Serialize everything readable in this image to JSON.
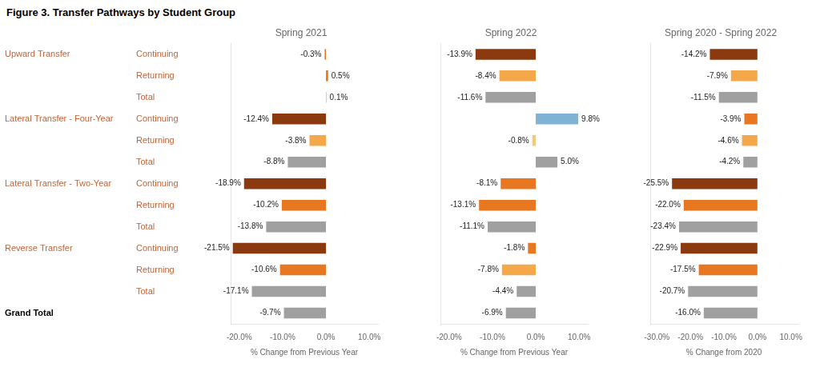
{
  "title": "Figure 3. Transfer Pathways by Student Group",
  "categories": [
    [
      "Upward Transfer",
      "Continuing"
    ],
    [
      null,
      "Returning"
    ],
    [
      null,
      "Total"
    ],
    [
      "Lateral Transfer - Four-Year",
      "Continuing"
    ],
    [
      null,
      "Returning"
    ],
    [
      null,
      "Total"
    ],
    [
      "Lateral Transfer - Two-Year",
      "Continuing"
    ],
    [
      null,
      "Returning"
    ],
    [
      null,
      "Total"
    ],
    [
      "Reverse Transfer",
      "Continuing"
    ],
    [
      null,
      "Returning"
    ],
    [
      null,
      "Total"
    ],
    [
      "Grand Total"
    ]
  ],
  "chart_data": [
    {
      "type": "bar",
      "orientation": "horizontal",
      "title": "Spring 2021",
      "xlabel": "% Change from Previous Year",
      "values": [
        -0.3,
        0.5,
        0.1,
        -12.4,
        -3.8,
        -8.8,
        -18.9,
        -10.2,
        -13.8,
        -21.5,
        -10.6,
        -17.1,
        -9.7
      ],
      "value_labels": [
        "-0.3%",
        "0.5%",
        "0.1%",
        "-12.4%",
        "-3.8%",
        "-8.8%",
        "-18.9%",
        "-10.2%",
        "-13.8%",
        "-21.5%",
        "-10.6%",
        "-17.1%",
        "-9.7%"
      ],
      "colors": [
        "#E87722",
        "#E87722",
        "#A0A0A0",
        "#8B3A0F",
        "#F5A84A",
        "#A0A0A0",
        "#8B3A0F",
        "#E87722",
        "#A0A0A0",
        "#8B3A0F",
        "#E87722",
        "#A0A0A0",
        "#A0A0A0"
      ],
      "xlim": [
        -22.0,
        12.0
      ],
      "xticks": [
        {
          "value": -20,
          "label": "-20.0%"
        },
        {
          "value": -10,
          "label": "-10.0%"
        },
        {
          "value": 0,
          "label": "0.0%"
        },
        {
          "value": 10,
          "label": "10.0%"
        }
      ],
      "data_labels": true,
      "grid": false,
      "tick_labels": "x"
    },
    {
      "type": "bar",
      "orientation": "horizontal",
      "title": "Spring 2022",
      "xlabel": "% Change from Previous Year",
      "values": [
        -13.9,
        -8.4,
        -11.6,
        9.8,
        -0.8,
        5.0,
        -8.1,
        -13.1,
        -11.1,
        -1.8,
        -7.8,
        -4.4,
        -6.9
      ],
      "value_labels": [
        "-13.9%",
        "-8.4%",
        "-11.6%",
        "9.8%",
        "-0.8%",
        "5.0%",
        "-8.1%",
        "-13.1%",
        "-11.1%",
        "-1.8%",
        "-7.8%",
        "-4.4%",
        "-6.9%"
      ],
      "colors": [
        "#8B3A0F",
        "#F5A84A",
        "#A0A0A0",
        "#7FB3D3",
        "#F5C97A",
        "#A0A0A0",
        "#E87722",
        "#E87722",
        "#A0A0A0",
        "#E87722",
        "#F5A84A",
        "#A0A0A0",
        "#A0A0A0"
      ],
      "xlim": [
        -22.0,
        12.0
      ],
      "xticks": [
        {
          "value": -20,
          "label": "-20.0%"
        },
        {
          "value": -10,
          "label": "-10.0%"
        },
        {
          "value": 0,
          "label": "0.0%"
        },
        {
          "value": 10,
          "label": "10.0%"
        }
      ],
      "data_labels": true,
      "grid": false,
      "tick_labels": "x"
    },
    {
      "type": "bar",
      "orientation": "horizontal",
      "title": "Spring 2020 - Spring 2022",
      "xlabel": "% Change from 2020",
      "values": [
        -14.2,
        -7.9,
        -11.5,
        -3.9,
        -4.6,
        -4.2,
        -25.5,
        -22.0,
        -23.4,
        -22.9,
        -17.5,
        -20.7,
        -16.0
      ],
      "value_labels": [
        "-14.2%",
        "-7.9%",
        "-11.5%",
        "-3.9%",
        "-4.6%",
        "-4.2%",
        "-25.5%",
        "-22.0%",
        "-23.4%",
        "-22.9%",
        "-17.5%",
        "-20.7%",
        "-16.0%"
      ],
      "colors": [
        "#8B3A0F",
        "#F5A84A",
        "#A0A0A0",
        "#E87722",
        "#F5A84A",
        "#A0A0A0",
        "#8B3A0F",
        "#E87722",
        "#A0A0A0",
        "#8B3A0F",
        "#E87722",
        "#A0A0A0",
        "#A0A0A0"
      ],
      "xlim": [
        -32.0,
        12.0
      ],
      "xticks": [
        {
          "value": -30,
          "label": "-30.0%"
        },
        {
          "value": -20,
          "label": "-20.0%"
        },
        {
          "value": -10,
          "label": "-10.0%"
        },
        {
          "value": 0,
          "label": "0.0%"
        },
        {
          "value": 10,
          "label": "10.0%"
        }
      ],
      "data_labels": true,
      "grid": false,
      "tick_labels": "x"
    }
  ]
}
